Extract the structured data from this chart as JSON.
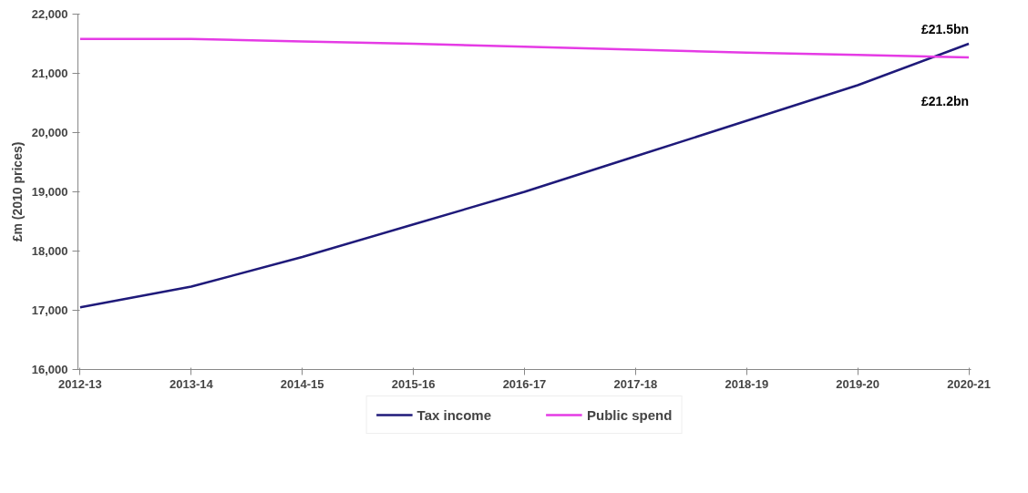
{
  "chart_data": {
    "type": "line",
    "ylabel": "£m (2010 prices)",
    "categories": [
      "2012-13",
      "2013-14",
      "2014-15",
      "2015-16",
      "2016-17",
      "2017-18",
      "2018-19",
      "2019-20",
      "2020-21"
    ],
    "series": [
      {
        "name": "Tax income",
        "color": "#1f1a7a",
        "values": [
          17050,
          17400,
          17900,
          18450,
          19000,
          19600,
          20200,
          20800,
          21500
        ]
      },
      {
        "name": "Public spend",
        "color": "#e53be5",
        "values": [
          21580,
          21580,
          21540,
          21500,
          21450,
          21400,
          21350,
          21310,
          21270
        ]
      }
    ],
    "ylim": [
      16000,
      22000
    ],
    "yticks": [
      {
        "value": 16000,
        "label": "16,000"
      },
      {
        "value": 17000,
        "label": "17,000"
      },
      {
        "value": 18000,
        "label": "18,000"
      },
      {
        "value": 19000,
        "label": "19,000"
      },
      {
        "value": 20000,
        "label": "20,000"
      },
      {
        "value": 21000,
        "label": "21,000"
      },
      {
        "value": 22000,
        "label": "22,000"
      }
    ],
    "annotations": [
      {
        "text": "£21.5bn",
        "x": "2020-21",
        "y": 21500
      },
      {
        "text": "£21.2bn",
        "x": "2020-21",
        "y": 21270
      }
    ],
    "legend": "bottom",
    "grid": false,
    "marker": "none",
    "line_style": "solid"
  }
}
